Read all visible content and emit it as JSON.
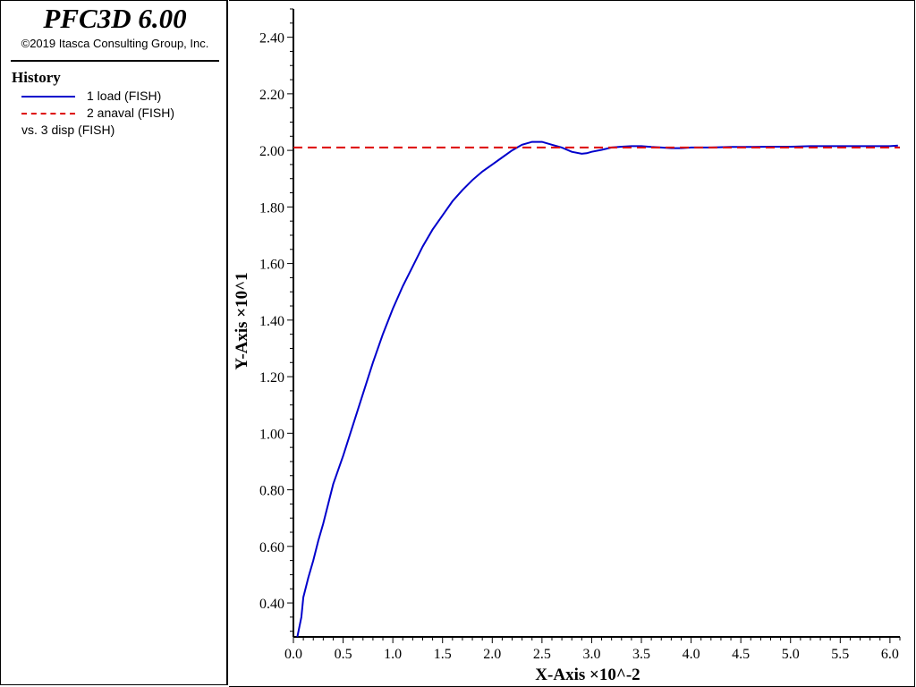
{
  "header": {
    "title": "PFC3D 6.00",
    "copyright": "©2019 Itasca Consulting Group, Inc."
  },
  "legend": {
    "heading": "History",
    "entries": [
      {
        "label": "1 load (FISH)",
        "color": "#0000cc",
        "style": "solid"
      },
      {
        "label": "2 anaval (FISH)",
        "color": "#dd0000",
        "style": "dashed"
      }
    ],
    "vs_label": "vs. 3 disp (FISH)"
  },
  "chart_data": {
    "type": "line",
    "xlabel": "X-Axis ×10^-2",
    "ylabel": "Y-Axis ×10^1",
    "xlim": [
      0.0,
      6.1
    ],
    "ylim": [
      0.28,
      2.5
    ],
    "xticks": [
      "0.0",
      "0.5",
      "1.0",
      "1.5",
      "2.0",
      "2.5",
      "3.0",
      "3.5",
      "4.0",
      "4.5",
      "5.0",
      "5.5",
      "6.0"
    ],
    "yticks": [
      "0.40",
      "0.60",
      "0.80",
      "1.00",
      "1.20",
      "1.40",
      "1.60",
      "1.80",
      "2.00",
      "2.20",
      "2.40"
    ],
    "grid": false,
    "series": [
      {
        "name": "1 load (FISH)",
        "color": "#0000cc",
        "style": "solid",
        "x": [
          0.04,
          0.08,
          0.1,
          0.15,
          0.2,
          0.25,
          0.3,
          0.35,
          0.4,
          0.5,
          0.6,
          0.7,
          0.8,
          0.9,
          1.0,
          1.1,
          1.2,
          1.3,
          1.4,
          1.5,
          1.6,
          1.7,
          1.8,
          1.9,
          2.0,
          2.1,
          2.2,
          2.3,
          2.4,
          2.5,
          2.6,
          2.7,
          2.8,
          2.9,
          2.95,
          3.0,
          3.1,
          3.2,
          3.3,
          3.4,
          3.5,
          3.6,
          3.7,
          3.8,
          3.9,
          4.0,
          4.2,
          4.4,
          4.6,
          4.8,
          5.0,
          5.2,
          5.4,
          5.6,
          5.8,
          6.0,
          6.08
        ],
        "y": [
          0.28,
          0.35,
          0.42,
          0.49,
          0.55,
          0.62,
          0.68,
          0.75,
          0.82,
          0.92,
          1.03,
          1.14,
          1.25,
          1.35,
          1.44,
          1.52,
          1.59,
          1.66,
          1.72,
          1.77,
          1.82,
          1.86,
          1.895,
          1.925,
          1.95,
          1.975,
          2.0,
          2.02,
          2.03,
          2.03,
          2.02,
          2.01,
          1.995,
          1.988,
          1.99,
          1.995,
          2.002,
          2.01,
          2.013,
          2.015,
          2.015,
          2.012,
          2.01,
          2.008,
          2.008,
          2.01,
          2.01,
          2.012,
          2.012,
          2.013,
          2.013,
          2.015,
          2.015,
          2.015,
          2.015,
          2.015,
          2.017
        ]
      },
      {
        "name": "2 anaval (FISH)",
        "color": "#dd0000",
        "style": "dashed",
        "x": [
          0.0,
          6.1
        ],
        "y": [
          2.01,
          2.01
        ]
      }
    ]
  }
}
